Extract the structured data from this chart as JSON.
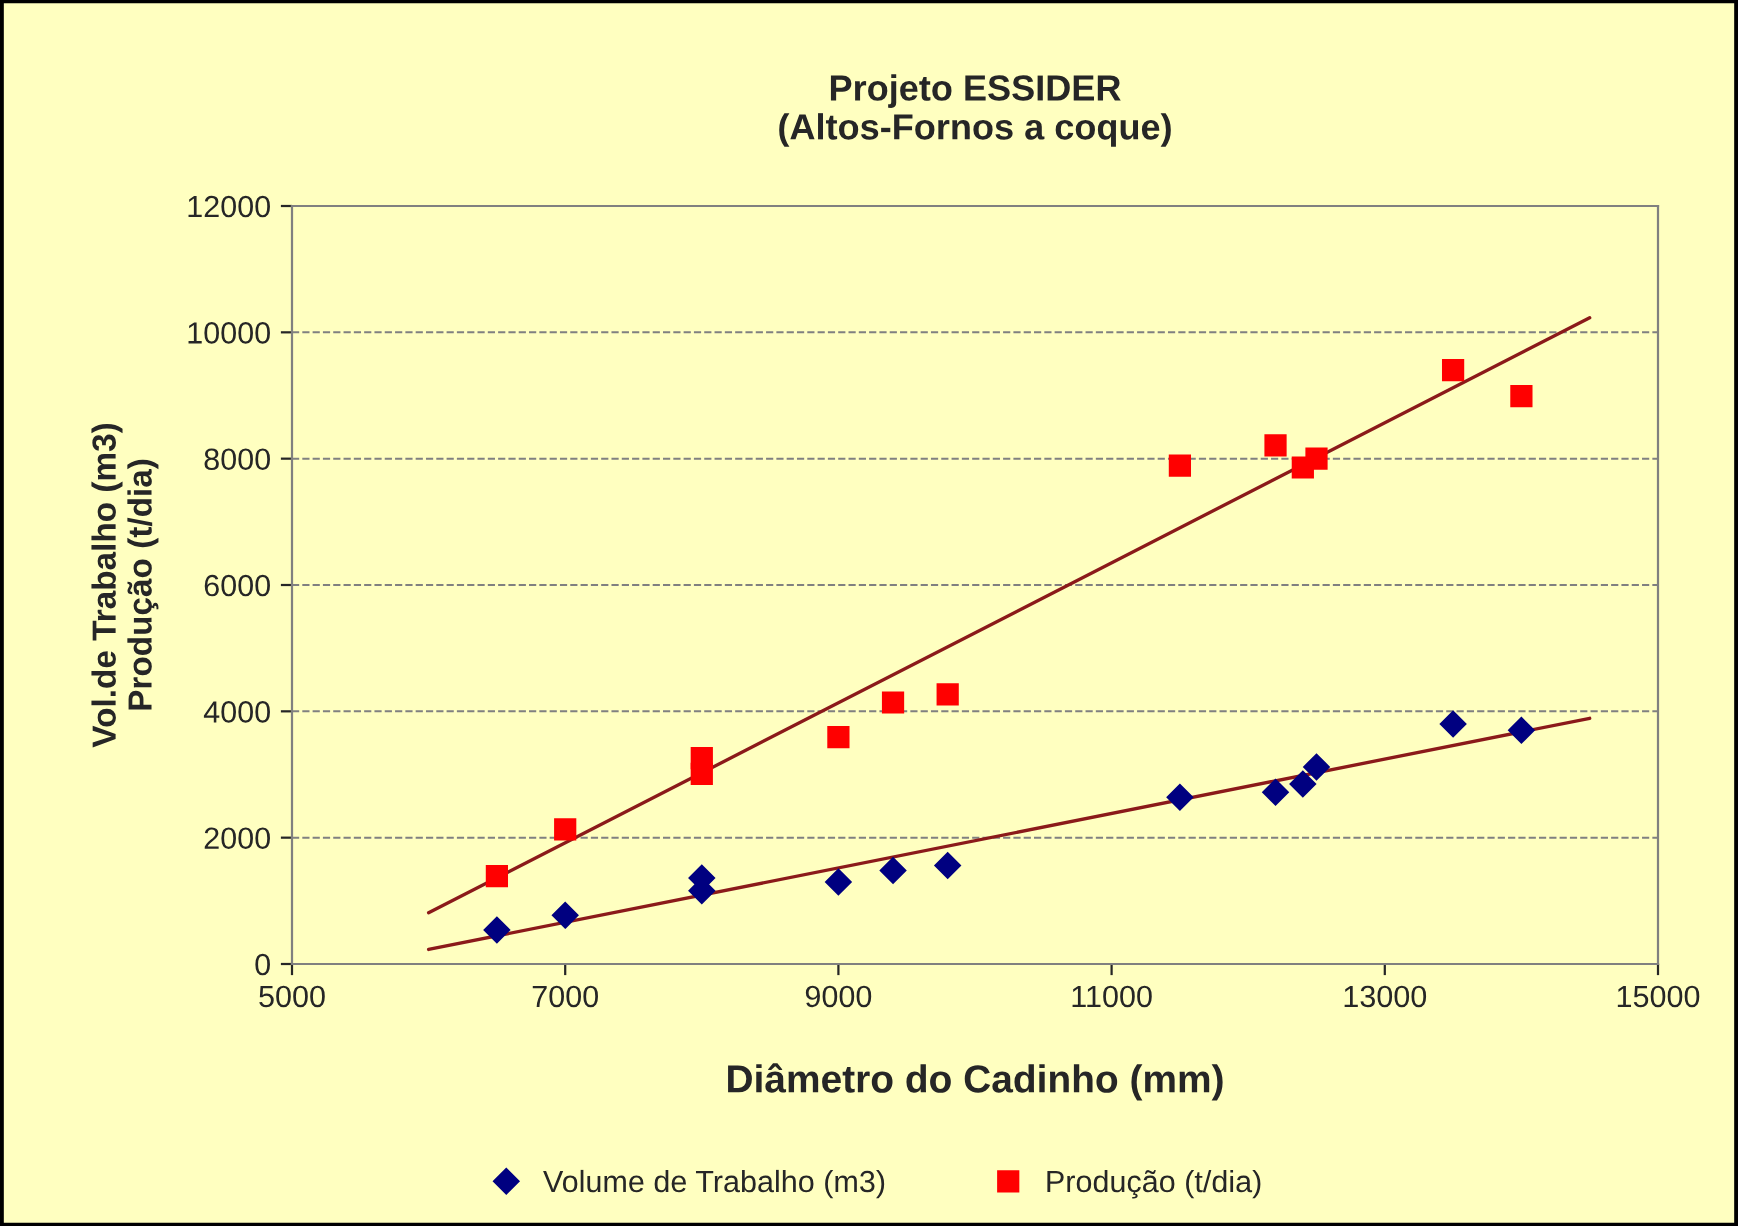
{
  "chart_data": {
    "type": "scatter",
    "title": "Projeto ESSIDER\n(Altos-Fornos a coque)",
    "xlabel": "Diâmetro do Cadinho (mm)",
    "ylabel": "Vol.de Trabalho (m3)\nProdução (t/dia)",
    "xlim": [
      5000,
      15000
    ],
    "xticks": [
      5000,
      7000,
      9000,
      11000,
      13000,
      15000
    ],
    "ylim": [
      0,
      12000
    ],
    "yticks": [
      0,
      2000,
      4000,
      6000,
      8000,
      10000,
      12000
    ],
    "grid": "y",
    "legend": "bottom",
    "series": [
      {
        "name": "Volume de Trabalho (m3)",
        "color": "#000080",
        "marker": "diamond",
        "x": [
          6500,
          7000,
          8000,
          8000,
          9000,
          9400,
          9800,
          11500,
          12200,
          12400,
          12500,
          13500,
          14000
        ],
        "values": [
          540,
          770,
          1360,
          1160,
          1300,
          1480,
          1560,
          2640,
          2720,
          2850,
          3120,
          3800,
          3700
        ]
      },
      {
        "name": "Produção (t/dia)",
        "color": "#ff0000",
        "marker": "square",
        "x": [
          6500,
          7000,
          8000,
          8000,
          9000,
          9400,
          9800,
          11500,
          12200,
          12400,
          12500,
          13500,
          14000
        ],
        "values": [
          1390,
          2130,
          3260,
          3010,
          3590,
          4140,
          4270,
          7890,
          8210,
          7860,
          8000,
          9400,
          8990
        ]
      },
      {
        "type": "line",
        "color": "#8b1a1a",
        "x": [
          6000,
          14500
        ],
        "values": [
          230,
          3890
        ]
      },
      {
        "type": "line",
        "color": "#8b1a1a",
        "x": [
          6000,
          14500
        ],
        "values": [
          810,
          10230
        ]
      }
    ]
  }
}
